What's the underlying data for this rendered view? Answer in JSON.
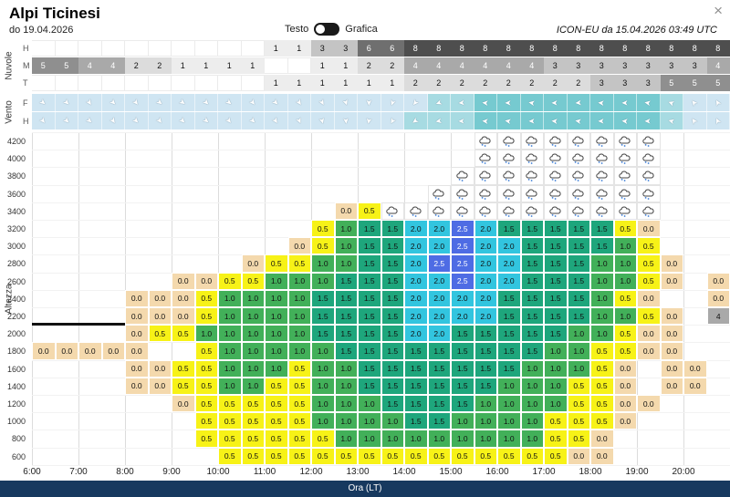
{
  "ui": {
    "title": "Alpi Ticinesi",
    "date": "do 19.04.2026",
    "toggle": {
      "left": "Testo",
      "right": "Grafica"
    },
    "model_info": "ICON-EU da 15.04.2026 03:49 UTC",
    "close": "×",
    "xaxis_bar": "Ora (LT)"
  },
  "chart_data": {
    "type": "heatmap",
    "title": "Thermal and cloud forecast meteogram",
    "x_hour_labels": [
      "6:00",
      "7:00",
      "8:00",
      "9:00",
      "10:00",
      "11:00",
      "12:00",
      "13:00",
      "14:00",
      "15:00",
      "16:00",
      "17:00",
      "18:00",
      "19:00",
      "20:00"
    ],
    "n_cols": 30,
    "col_step_minutes": 30,
    "clouds": {
      "label": "Nuvole",
      "scale_max": 8,
      "shades": {
        "1": "#ededed",
        "2": "#dcdcdc",
        "3": "#c4c4c4",
        "4": "#a9a9a9",
        "5": "#8f8f8f",
        "6": "#6f6f6f",
        "8": "#4e4e4e"
      },
      "rows": [
        {
          "label": "H",
          "cells": [
            null,
            null,
            null,
            null,
            null,
            null,
            null,
            null,
            null,
            null,
            1,
            1,
            3,
            3,
            6,
            6,
            8,
            8,
            8,
            8,
            8,
            8,
            8,
            8,
            8,
            8,
            8,
            8,
            8,
            8
          ]
        },
        {
          "label": "M",
          "cells": [
            5,
            5,
            4,
            4,
            2,
            2,
            1,
            1,
            1,
            1,
            null,
            null,
            1,
            1,
            2,
            2,
            4,
            4,
            4,
            4,
            4,
            4,
            3,
            3,
            3,
            3,
            3,
            3,
            3,
            4
          ]
        },
        {
          "label": "T",
          "cells": [
            null,
            null,
            null,
            null,
            null,
            null,
            null,
            null,
            null,
            null,
            1,
            1,
            1,
            1,
            1,
            1,
            2,
            2,
            2,
            2,
            2,
            2,
            2,
            2,
            3,
            3,
            3,
            5,
            5,
            5
          ]
        }
      ]
    },
    "wind": {
      "label": "Vento",
      "strength_colors": [
        "#cfe5f2",
        "#a7dbe2",
        "#76cad0"
      ],
      "rows": [
        {
          "label": "F",
          "dirs": [
            40,
            45,
            55,
            45,
            50,
            40,
            35,
            45,
            40,
            50,
            45,
            55,
            60,
            70,
            90,
            110,
            130,
            160,
            175,
            185,
            180,
            190,
            180,
            175,
            185,
            180,
            190,
            200,
            230,
            240
          ],
          "strength": [
            0,
            0,
            0,
            0,
            0,
            0,
            0,
            0,
            0,
            0,
            0,
            0,
            0,
            0,
            0,
            0,
            0,
            1,
            1,
            2,
            2,
            2,
            2,
            2,
            2,
            2,
            2,
            1,
            0,
            0
          ]
        },
        {
          "label": "H",
          "dirs": [
            50,
            45,
            40,
            55,
            45,
            50,
            45,
            40,
            50,
            45,
            55,
            65,
            75,
            85,
            100,
            120,
            145,
            170,
            180,
            185,
            190,
            180,
            185,
            190,
            180,
            185,
            180,
            195,
            235,
            245
          ],
          "strength": [
            0,
            0,
            0,
            0,
            0,
            0,
            0,
            0,
            0,
            0,
            0,
            0,
            0,
            0,
            0,
            0,
            1,
            1,
            1,
            2,
            2,
            2,
            2,
            2,
            2,
            2,
            2,
            1,
            0,
            0
          ]
        }
      ]
    },
    "thermals": {
      "ylabel": "Altezza",
      "xlabel": "Ora (LT)",
      "legend_colors": {
        "0": "#f4d9ad",
        "0.5": "#f7f217",
        "1": "#42b059",
        "1.5": "#1ea67c",
        "2": "#32c5df",
        "2.5": "#4e6ce4"
      },
      "gray_cell_color": "#a9a9a9",
      "altitudes": [
        4200,
        4000,
        3800,
        3600,
        3400,
        3200,
        3000,
        2800,
        2600,
        2400,
        2200,
        2000,
        1800,
        1600,
        1400,
        1200,
        1000,
        800,
        600
      ],
      "marker": {
        "altitude": 2200,
        "col_from": 0,
        "col_to": 4
      },
      "grid": [
        [
          null,
          null,
          null,
          null,
          null,
          null,
          null,
          null,
          null,
          null,
          null,
          null,
          null,
          null,
          null,
          null,
          null,
          null,
          null,
          "C",
          "C",
          "C",
          "C",
          "C",
          "C",
          "C",
          "C",
          null,
          null,
          null
        ],
        [
          null,
          null,
          null,
          null,
          null,
          null,
          null,
          null,
          null,
          null,
          null,
          null,
          null,
          null,
          null,
          null,
          null,
          null,
          null,
          "C",
          "C",
          "C",
          "C",
          "C",
          "C",
          "C",
          "C",
          null,
          null,
          null
        ],
        [
          null,
          null,
          null,
          null,
          null,
          null,
          null,
          null,
          null,
          null,
          null,
          null,
          null,
          null,
          null,
          null,
          null,
          null,
          "C",
          "C",
          "C",
          "C",
          "C",
          "C",
          "C",
          "C",
          "C",
          null,
          null,
          null
        ],
        [
          null,
          null,
          null,
          null,
          null,
          null,
          null,
          null,
          null,
          null,
          null,
          null,
          null,
          null,
          null,
          null,
          null,
          "C",
          "C",
          "C",
          "C",
          "C",
          "C",
          "C",
          "C",
          "C",
          "C",
          null,
          null,
          null
        ],
        [
          null,
          null,
          null,
          null,
          null,
          null,
          null,
          null,
          null,
          null,
          null,
          null,
          null,
          0,
          0.5,
          "C",
          "C",
          "C",
          "C",
          "C",
          "C",
          "C",
          "C",
          "C",
          "C",
          "C",
          "C",
          null,
          null,
          null
        ],
        [
          null,
          null,
          null,
          null,
          null,
          null,
          null,
          null,
          null,
          null,
          null,
          null,
          0.5,
          1,
          1.5,
          1.5,
          2,
          2,
          2.5,
          2,
          1.5,
          1.5,
          1.5,
          1.5,
          1.5,
          0.5,
          0,
          null,
          null,
          null
        ],
        [
          null,
          null,
          null,
          null,
          null,
          null,
          null,
          null,
          null,
          null,
          null,
          0,
          0.5,
          1,
          1.5,
          1.5,
          2,
          2,
          2.5,
          2,
          2,
          1.5,
          1.5,
          1.5,
          1.5,
          1,
          0.5,
          null,
          null,
          null
        ],
        [
          null,
          null,
          null,
          null,
          null,
          null,
          null,
          null,
          null,
          0,
          0.5,
          0.5,
          1,
          1,
          1.5,
          1.5,
          2,
          2.5,
          2.5,
          2,
          2,
          1.5,
          1.5,
          1.5,
          1,
          1,
          0.5,
          0,
          null,
          null
        ],
        [
          null,
          null,
          null,
          null,
          null,
          null,
          0,
          0,
          0.5,
          0.5,
          1,
          1,
          1,
          1.5,
          1.5,
          1.5,
          2,
          2,
          2.5,
          2,
          2,
          1.5,
          1.5,
          1.5,
          1,
          1,
          0.5,
          0,
          null,
          0
        ],
        [
          null,
          null,
          null,
          null,
          0,
          0,
          0,
          0.5,
          1,
          1,
          1,
          1,
          1.5,
          1.5,
          1.5,
          1.5,
          2,
          2,
          2,
          2,
          1.5,
          1.5,
          1.5,
          1.5,
          1,
          0.5,
          0,
          null,
          null,
          0
        ],
        [
          null,
          null,
          null,
          null,
          0,
          0,
          0,
          0.5,
          1,
          1,
          1,
          1,
          1.5,
          1.5,
          1.5,
          1.5,
          2,
          2,
          2,
          2,
          1.5,
          1.5,
          1.5,
          1.5,
          1,
          1,
          0.5,
          0,
          null,
          "g4"
        ],
        [
          null,
          null,
          null,
          null,
          0,
          0.5,
          0.5,
          1,
          1,
          1,
          1,
          1,
          1.5,
          1.5,
          1.5,
          1.5,
          2,
          2,
          1.5,
          1.5,
          1.5,
          1.5,
          1.5,
          1,
          1,
          0.5,
          0,
          0,
          null,
          null
        ],
        [
          0,
          0,
          0,
          0,
          0,
          null,
          null,
          0.5,
          1,
          1,
          1,
          1,
          1,
          1.5,
          1.5,
          1.5,
          1.5,
          1.5,
          1.5,
          1.5,
          1.5,
          1.5,
          1,
          1,
          0.5,
          0.5,
          0,
          0,
          null,
          null
        ],
        [
          null,
          null,
          null,
          null,
          0,
          0,
          0.5,
          0.5,
          1,
          1,
          1,
          0.5,
          1,
          1,
          1.5,
          1.5,
          1.5,
          1.5,
          1.5,
          1.5,
          1.5,
          1,
          1,
          1,
          0.5,
          0,
          null,
          0,
          0,
          null
        ],
        [
          null,
          null,
          null,
          null,
          0,
          0,
          0.5,
          0.5,
          1,
          1,
          0.5,
          0.5,
          1,
          1,
          1.5,
          1.5,
          1.5,
          1.5,
          1.5,
          1.5,
          1,
          1,
          1,
          0.5,
          0.5,
          0,
          null,
          0,
          0,
          null
        ],
        [
          null,
          null,
          null,
          null,
          null,
          null,
          0,
          0.5,
          0.5,
          0.5,
          0.5,
          0.5,
          1,
          1,
          1,
          1.5,
          1.5,
          1.5,
          1.5,
          1,
          1,
          1,
          1,
          0.5,
          0.5,
          0,
          0,
          null,
          null,
          null
        ],
        [
          null,
          null,
          null,
          null,
          null,
          null,
          null,
          0.5,
          0.5,
          0.5,
          0.5,
          0.5,
          1,
          1,
          1,
          1,
          1.5,
          1.5,
          1,
          1,
          1,
          1,
          0.5,
          0.5,
          0.5,
          0,
          null,
          null,
          null,
          null
        ],
        [
          null,
          null,
          null,
          null,
          null,
          null,
          null,
          0.5,
          0.5,
          0.5,
          0.5,
          0.5,
          0.5,
          1,
          1,
          1,
          1,
          1,
          1,
          1,
          1,
          1,
          0.5,
          0.5,
          0,
          null,
          null,
          null,
          null,
          null
        ],
        [
          null,
          null,
          null,
          null,
          null,
          null,
          null,
          null,
          0.5,
          0.5,
          0.5,
          0.5,
          0.5,
          0.5,
          0.5,
          0.5,
          0.5,
          0.5,
          0.5,
          0.5,
          0.5,
          0.5,
          0.5,
          0,
          0,
          null,
          null,
          null,
          null,
          null
        ]
      ]
    }
  }
}
